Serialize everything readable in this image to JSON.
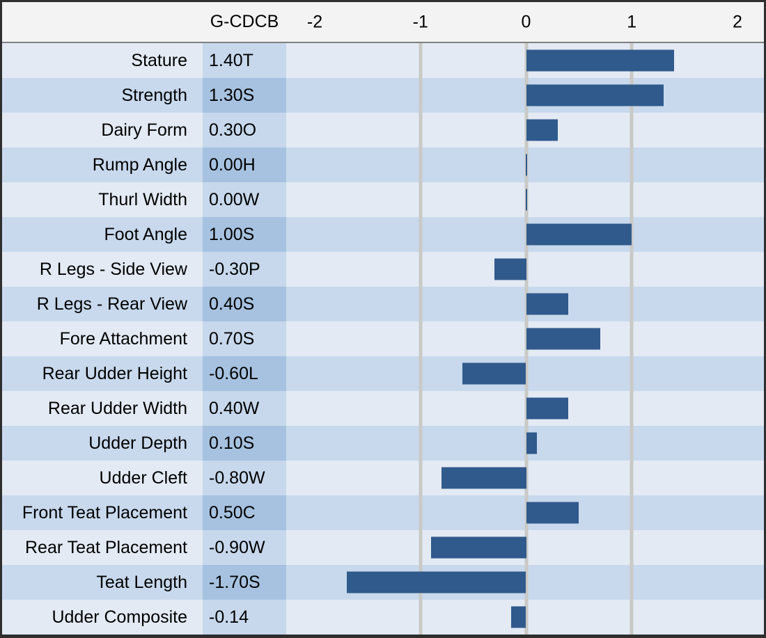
{
  "header": {
    "value_column_label": "G-CDCB"
  },
  "colors": {
    "bar": "#305A8C",
    "row_dark": "#C8D9ED",
    "row_light": "#E3EAF4",
    "value_dark": "#A6C2E0",
    "value_light": "#C7D8EC",
    "gridline": "#C9C9C6",
    "header_bg": "#F3F3F3",
    "border": "#2E2E2E",
    "text": "#000000"
  },
  "chart_data": {
    "type": "bar",
    "orientation": "horizontal",
    "title": "",
    "value_column_header": "G-CDCB",
    "categories": [
      "Stature",
      "Strength",
      "Dairy Form",
      "Rump Angle",
      "Thurl Width",
      "Foot Angle",
      "R Legs - Side View",
      "R Legs - Rear View",
      "Fore Attachment",
      "Rear Udder Height",
      "Rear Udder Width",
      "Udder Depth",
      "Udder Cleft",
      "Front Teat Placement",
      "Rear Teat Placement",
      "Teat Length",
      "Udder Composite"
    ],
    "values": [
      1.4,
      1.3,
      0.3,
      0.0,
      0.0,
      1.0,
      -0.3,
      0.4,
      0.7,
      -0.6,
      0.4,
      0.1,
      -0.8,
      0.5,
      -0.9,
      -1.7,
      -0.14
    ],
    "value_labels": [
      "1.40T",
      "1.30S",
      "0.30O",
      "0.00H",
      "0.00W",
      "1.00S",
      "-0.30P",
      "0.40S",
      "0.70S",
      "-0.60L",
      "0.40W",
      "0.10S",
      "-0.80W",
      "0.50C",
      "-0.90W",
      "-1.70S",
      "-0.14"
    ],
    "x_ticks": [
      -2,
      -1,
      0,
      1,
      2
    ],
    "x_range": [
      -2.28,
      2.25
    ],
    "gridlines_at": [
      -1,
      0,
      1
    ],
    "grid": true,
    "legend": false
  }
}
